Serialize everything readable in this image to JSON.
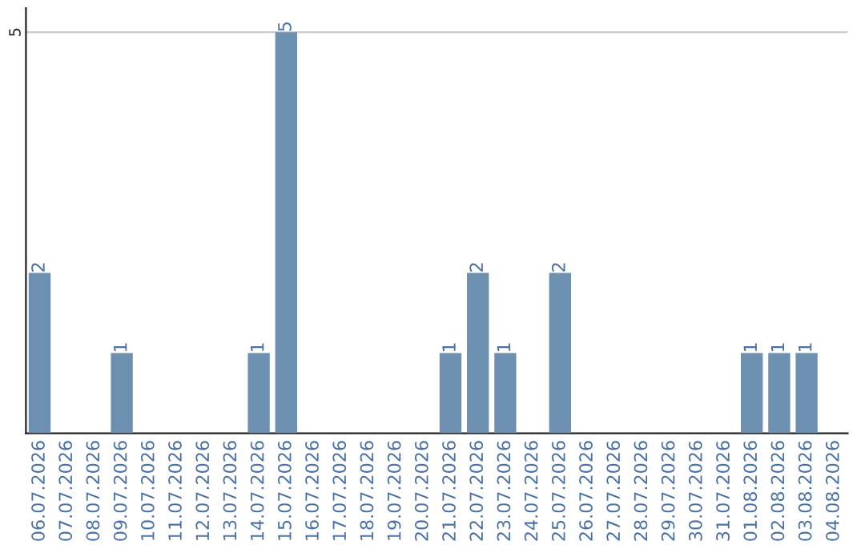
{
  "chart_data": {
    "type": "bar",
    "categories": [
      "06.07.2026",
      "07.07.2026",
      "08.07.2026",
      "09.07.2026",
      "10.07.2026",
      "11.07.2026",
      "12.07.2026",
      "13.07.2026",
      "14.07.2026",
      "15.07.2026",
      "16.07.2026",
      "17.07.2026",
      "18.07.2026",
      "19.07.2026",
      "20.07.2026",
      "21.07.2026",
      "22.07.2026",
      "23.07.2026",
      "24.07.2026",
      "25.07.2026",
      "26.07.2026",
      "27.07.2026",
      "28.07.2026",
      "29.07.2026",
      "30.07.2026",
      "31.07.2026",
      "01.08.2026",
      "02.08.2026",
      "03.08.2026",
      "04.08.2026"
    ],
    "values": [
      2,
      0,
      0,
      1,
      0,
      0,
      0,
      0,
      1,
      5,
      0,
      0,
      0,
      0,
      0,
      1,
      2,
      1,
      0,
      2,
      0,
      0,
      0,
      0,
      0,
      0,
      1,
      1,
      1,
      0
    ],
    "value_labels": [
      "2",
      null,
      null,
      "1",
      null,
      null,
      null,
      null,
      "1",
      "5",
      null,
      null,
      null,
      null,
      null,
      "1",
      "2",
      "1",
      null,
      "2",
      null,
      null,
      null,
      null,
      null,
      null,
      "1",
      "1",
      "1",
      null
    ],
    "color": "#6d8fb0",
    "ylim": [
      0,
      5.3
    ],
    "yticks": [
      5
    ],
    "grid": "y",
    "legend": false
  }
}
